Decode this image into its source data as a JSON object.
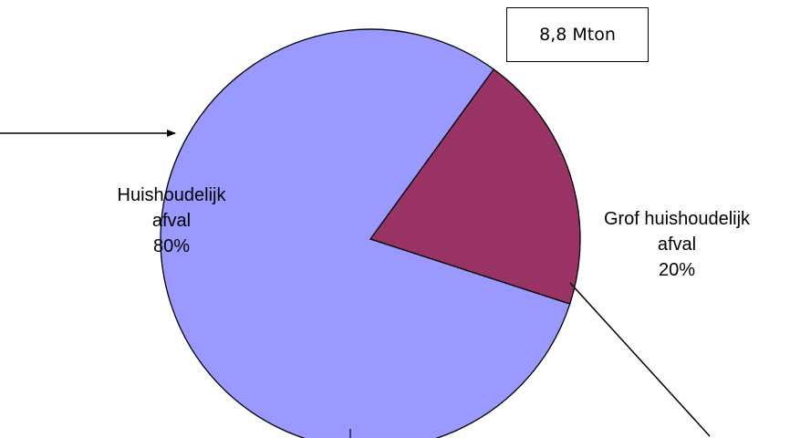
{
  "total_label": "8,8 Mton",
  "chart_data": {
    "type": "pie",
    "title": "",
    "legend": "none",
    "slices": [
      {
        "label_lines": [
          "Huishoudelijk",
          "afval"
        ],
        "value": 80,
        "value_label": "80%",
        "color": "#9999ff"
      },
      {
        "label_lines": [
          "Grof huishoudelijk",
          "afval"
        ],
        "value": 20,
        "value_label": "20%",
        "color": "#993366"
      }
    ]
  }
}
